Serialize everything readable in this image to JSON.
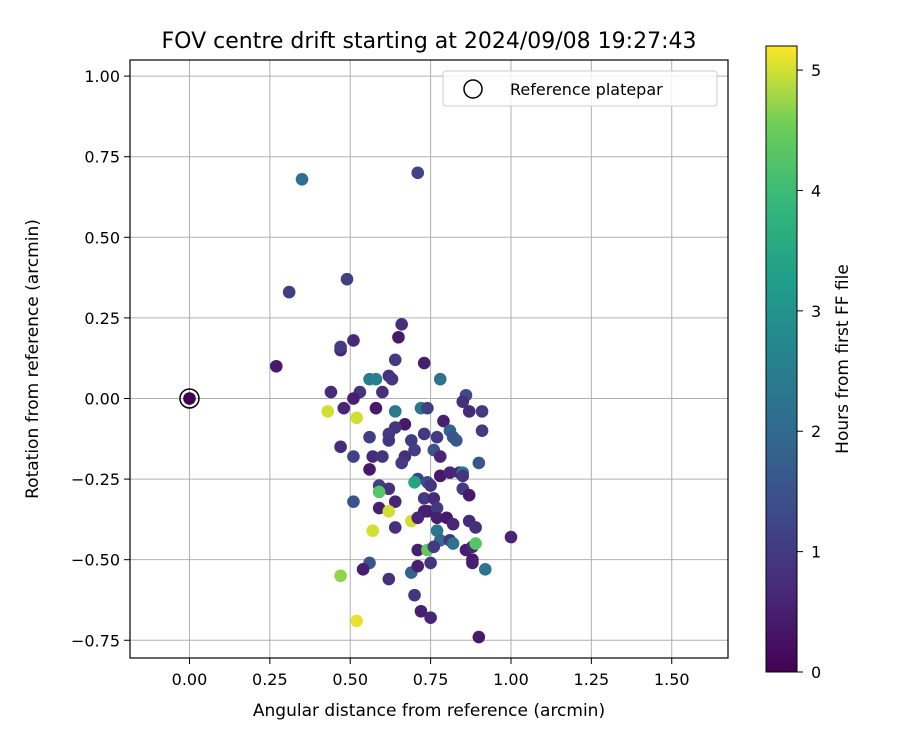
{
  "chart_data": {
    "type": "scatter",
    "title": "FOV centre drift starting at 2024/09/08 19:27:43",
    "xlabel": "Angular distance from reference (arcmin)",
    "ylabel": "Rotation from reference (arcmin)",
    "colorbar_label": "Hours from first FF file",
    "xlim": [
      -0.185,
      1.675
    ],
    "ylim": [
      -0.805,
      1.05
    ],
    "xticks": [
      "0.00",
      "0.25",
      "0.50",
      "0.75",
      "1.00",
      "1.25",
      "1.50"
    ],
    "yticks": [
      "1.00",
      "0.75",
      "0.50",
      "0.25",
      "0.00",
      "−0.25",
      "−0.50",
      "−0.75"
    ],
    "colorbar_ticks": [
      "0",
      "1",
      "2",
      "3",
      "4",
      "5"
    ],
    "colorbar_range": [
      0,
      5.2
    ],
    "colormap": "viridis",
    "grid": true,
    "legend": {
      "location": "top-right",
      "entries": [
        "Reference platepar"
      ]
    },
    "reference_point": {
      "x": 0.0,
      "y": 0.0
    },
    "points": [
      {
        "x": 0.35,
        "y": 0.68,
        "h": 2.1
      },
      {
        "x": 0.71,
        "y": 0.7,
        "h": 1.2
      },
      {
        "x": 0.31,
        "y": 0.33,
        "h": 1.1
      },
      {
        "x": 0.49,
        "y": 0.37,
        "h": 1.1
      },
      {
        "x": 0.27,
        "y": 0.1,
        "h": 0.4
      },
      {
        "x": 0.47,
        "y": 0.15,
        "h": 0.6
      },
      {
        "x": 0.47,
        "y": 0.16,
        "h": 1.0
      },
      {
        "x": 0.51,
        "y": 0.18,
        "h": 0.7
      },
      {
        "x": 0.66,
        "y": 0.23,
        "h": 0.8
      },
      {
        "x": 0.65,
        "y": 0.19,
        "h": 0.4
      },
      {
        "x": 0.64,
        "y": 0.12,
        "h": 1.0
      },
      {
        "x": 0.73,
        "y": 0.11,
        "h": 0.5
      },
      {
        "x": 0.56,
        "y": 0.06,
        "h": 2.5
      },
      {
        "x": 0.58,
        "y": 0.06,
        "h": 2.6
      },
      {
        "x": 0.62,
        "y": 0.07,
        "h": 0.8
      },
      {
        "x": 0.63,
        "y": 0.06,
        "h": 0.9
      },
      {
        "x": 0.78,
        "y": 0.06,
        "h": 2.2
      },
      {
        "x": 0.44,
        "y": 0.02,
        "h": 0.7
      },
      {
        "x": 0.53,
        "y": 0.02,
        "h": 0.9
      },
      {
        "x": 0.6,
        "y": 0.02,
        "h": 0.8
      },
      {
        "x": 0.86,
        "y": 0.01,
        "h": 1.3
      },
      {
        "x": 0.51,
        "y": 0.0,
        "h": 0.5
      },
      {
        "x": 0.43,
        "y": -0.04,
        "h": 5.0
      },
      {
        "x": 0.48,
        "y": -0.03,
        "h": 0.6
      },
      {
        "x": 0.52,
        "y": -0.06,
        "h": 5.0
      },
      {
        "x": 0.58,
        "y": -0.03,
        "h": 0.4
      },
      {
        "x": 0.64,
        "y": -0.04,
        "h": 2.4
      },
      {
        "x": 0.72,
        "y": -0.03,
        "h": 2.3
      },
      {
        "x": 0.74,
        "y": -0.03,
        "h": 1.1
      },
      {
        "x": 0.85,
        "y": -0.01,
        "h": 0.8
      },
      {
        "x": 0.87,
        "y": -0.04,
        "h": 0.7
      },
      {
        "x": 0.91,
        "y": -0.04,
        "h": 1.0
      },
      {
        "x": 0.79,
        "y": -0.07,
        "h": 0.5
      },
      {
        "x": 0.67,
        "y": -0.08,
        "h": 0.4
      },
      {
        "x": 0.64,
        "y": -0.09,
        "h": 0.9
      },
      {
        "x": 0.81,
        "y": -0.1,
        "h": 1.8
      },
      {
        "x": 0.82,
        "y": -0.12,
        "h": 1.5
      },
      {
        "x": 0.83,
        "y": -0.13,
        "h": 1.6
      },
      {
        "x": 0.91,
        "y": -0.1,
        "h": 1.0
      },
      {
        "x": 0.56,
        "y": -0.12,
        "h": 1.1
      },
      {
        "x": 0.62,
        "y": -0.11,
        "h": 1.0
      },
      {
        "x": 0.62,
        "y": -0.13,
        "h": 0.9
      },
      {
        "x": 0.69,
        "y": -0.13,
        "h": 1.0
      },
      {
        "x": 0.73,
        "y": -0.11,
        "h": 1.0
      },
      {
        "x": 0.77,
        "y": -0.12,
        "h": 1.0
      },
      {
        "x": 0.47,
        "y": -0.15,
        "h": 0.7
      },
      {
        "x": 0.7,
        "y": -0.16,
        "h": 1.1
      },
      {
        "x": 0.76,
        "y": -0.16,
        "h": 1.5
      },
      {
        "x": 0.51,
        "y": -0.18,
        "h": 1.2
      },
      {
        "x": 0.57,
        "y": -0.18,
        "h": 0.7
      },
      {
        "x": 0.6,
        "y": -0.18,
        "h": 0.9
      },
      {
        "x": 0.67,
        "y": -0.18,
        "h": 0.8
      },
      {
        "x": 0.78,
        "y": -0.18,
        "h": 0.6
      },
      {
        "x": 0.66,
        "y": -0.2,
        "h": 1.0
      },
      {
        "x": 0.56,
        "y": -0.22,
        "h": 0.4
      },
      {
        "x": 0.9,
        "y": -0.2,
        "h": 1.6
      },
      {
        "x": 0.71,
        "y": -0.25,
        "h": 1.2
      },
      {
        "x": 0.74,
        "y": -0.26,
        "h": 1.4
      },
      {
        "x": 0.78,
        "y": -0.24,
        "h": 0.4
      },
      {
        "x": 0.81,
        "y": -0.23,
        "h": 0.6
      },
      {
        "x": 0.84,
        "y": -0.23,
        "h": 0.6
      },
      {
        "x": 0.85,
        "y": -0.23,
        "h": 2.4
      },
      {
        "x": 0.85,
        "y": -0.24,
        "h": 0.9
      },
      {
        "x": 0.7,
        "y": -0.26,
        "h": 3.4
      },
      {
        "x": 0.75,
        "y": -0.27,
        "h": 0.9
      },
      {
        "x": 0.59,
        "y": -0.27,
        "h": 1.1
      },
      {
        "x": 0.62,
        "y": -0.28,
        "h": 0.8
      },
      {
        "x": 0.59,
        "y": -0.29,
        "h": 4.3
      },
      {
        "x": 0.85,
        "y": -0.28,
        "h": 1.0
      },
      {
        "x": 0.87,
        "y": -0.3,
        "h": 0.4
      },
      {
        "x": 0.51,
        "y": -0.32,
        "h": 1.5
      },
      {
        "x": 0.73,
        "y": -0.31,
        "h": 1.0
      },
      {
        "x": 0.76,
        "y": -0.31,
        "h": 0.7
      },
      {
        "x": 0.64,
        "y": -0.32,
        "h": 0.6
      },
      {
        "x": 0.59,
        "y": -0.34,
        "h": 0.5
      },
      {
        "x": 0.62,
        "y": -0.35,
        "h": 5.0
      },
      {
        "x": 0.74,
        "y": -0.35,
        "h": 0.4
      },
      {
        "x": 0.77,
        "y": -0.34,
        "h": 1.0
      },
      {
        "x": 0.73,
        "y": -0.35,
        "h": 0.5
      },
      {
        "x": 0.69,
        "y": -0.38,
        "h": 5.0
      },
      {
        "x": 0.77,
        "y": -0.37,
        "h": 0.5
      },
      {
        "x": 0.8,
        "y": -0.37,
        "h": 0.4
      },
      {
        "x": 0.71,
        "y": -0.37,
        "h": 0.6
      },
      {
        "x": 0.57,
        "y": -0.41,
        "h": 5.0
      },
      {
        "x": 0.64,
        "y": -0.4,
        "h": 0.8
      },
      {
        "x": 0.77,
        "y": -0.41,
        "h": 2.3
      },
      {
        "x": 0.82,
        "y": -0.39,
        "h": 0.6
      },
      {
        "x": 0.87,
        "y": -0.38,
        "h": 0.7
      },
      {
        "x": 0.89,
        "y": -0.4,
        "h": 0.8
      },
      {
        "x": 0.78,
        "y": -0.44,
        "h": 2.0
      },
      {
        "x": 0.81,
        "y": -0.44,
        "h": 0.9
      },
      {
        "x": 0.82,
        "y": -0.45,
        "h": 2.2
      },
      {
        "x": 0.86,
        "y": -0.47,
        "h": 0.5
      },
      {
        "x": 0.88,
        "y": -0.46,
        "h": 0.6
      },
      {
        "x": 0.89,
        "y": -0.45,
        "h": 4.3
      },
      {
        "x": 1.0,
        "y": -0.43,
        "h": 0.6
      },
      {
        "x": 0.71,
        "y": -0.47,
        "h": 0.5
      },
      {
        "x": 0.74,
        "y": -0.47,
        "h": 4.4
      },
      {
        "x": 0.76,
        "y": -0.46,
        "h": 1.0
      },
      {
        "x": 0.88,
        "y": -0.5,
        "h": 0.4
      },
      {
        "x": 0.88,
        "y": -0.51,
        "h": 0.5
      },
      {
        "x": 0.92,
        "y": -0.53,
        "h": 2.3
      },
      {
        "x": 0.56,
        "y": -0.51,
        "h": 1.5
      },
      {
        "x": 0.54,
        "y": -0.53,
        "h": 0.5
      },
      {
        "x": 0.47,
        "y": -0.55,
        "h": 4.7
      },
      {
        "x": 0.62,
        "y": -0.56,
        "h": 0.8
      },
      {
        "x": 0.69,
        "y": -0.54,
        "h": 1.8
      },
      {
        "x": 0.71,
        "y": -0.52,
        "h": 0.5
      },
      {
        "x": 0.75,
        "y": -0.51,
        "h": 0.9
      },
      {
        "x": 0.7,
        "y": -0.61,
        "h": 0.9
      },
      {
        "x": 0.72,
        "y": -0.66,
        "h": 0.5
      },
      {
        "x": 0.75,
        "y": -0.68,
        "h": 0.6
      },
      {
        "x": 0.52,
        "y": -0.69,
        "h": 5.1
      },
      {
        "x": 0.9,
        "y": -0.74,
        "h": 0.4
      }
    ]
  }
}
